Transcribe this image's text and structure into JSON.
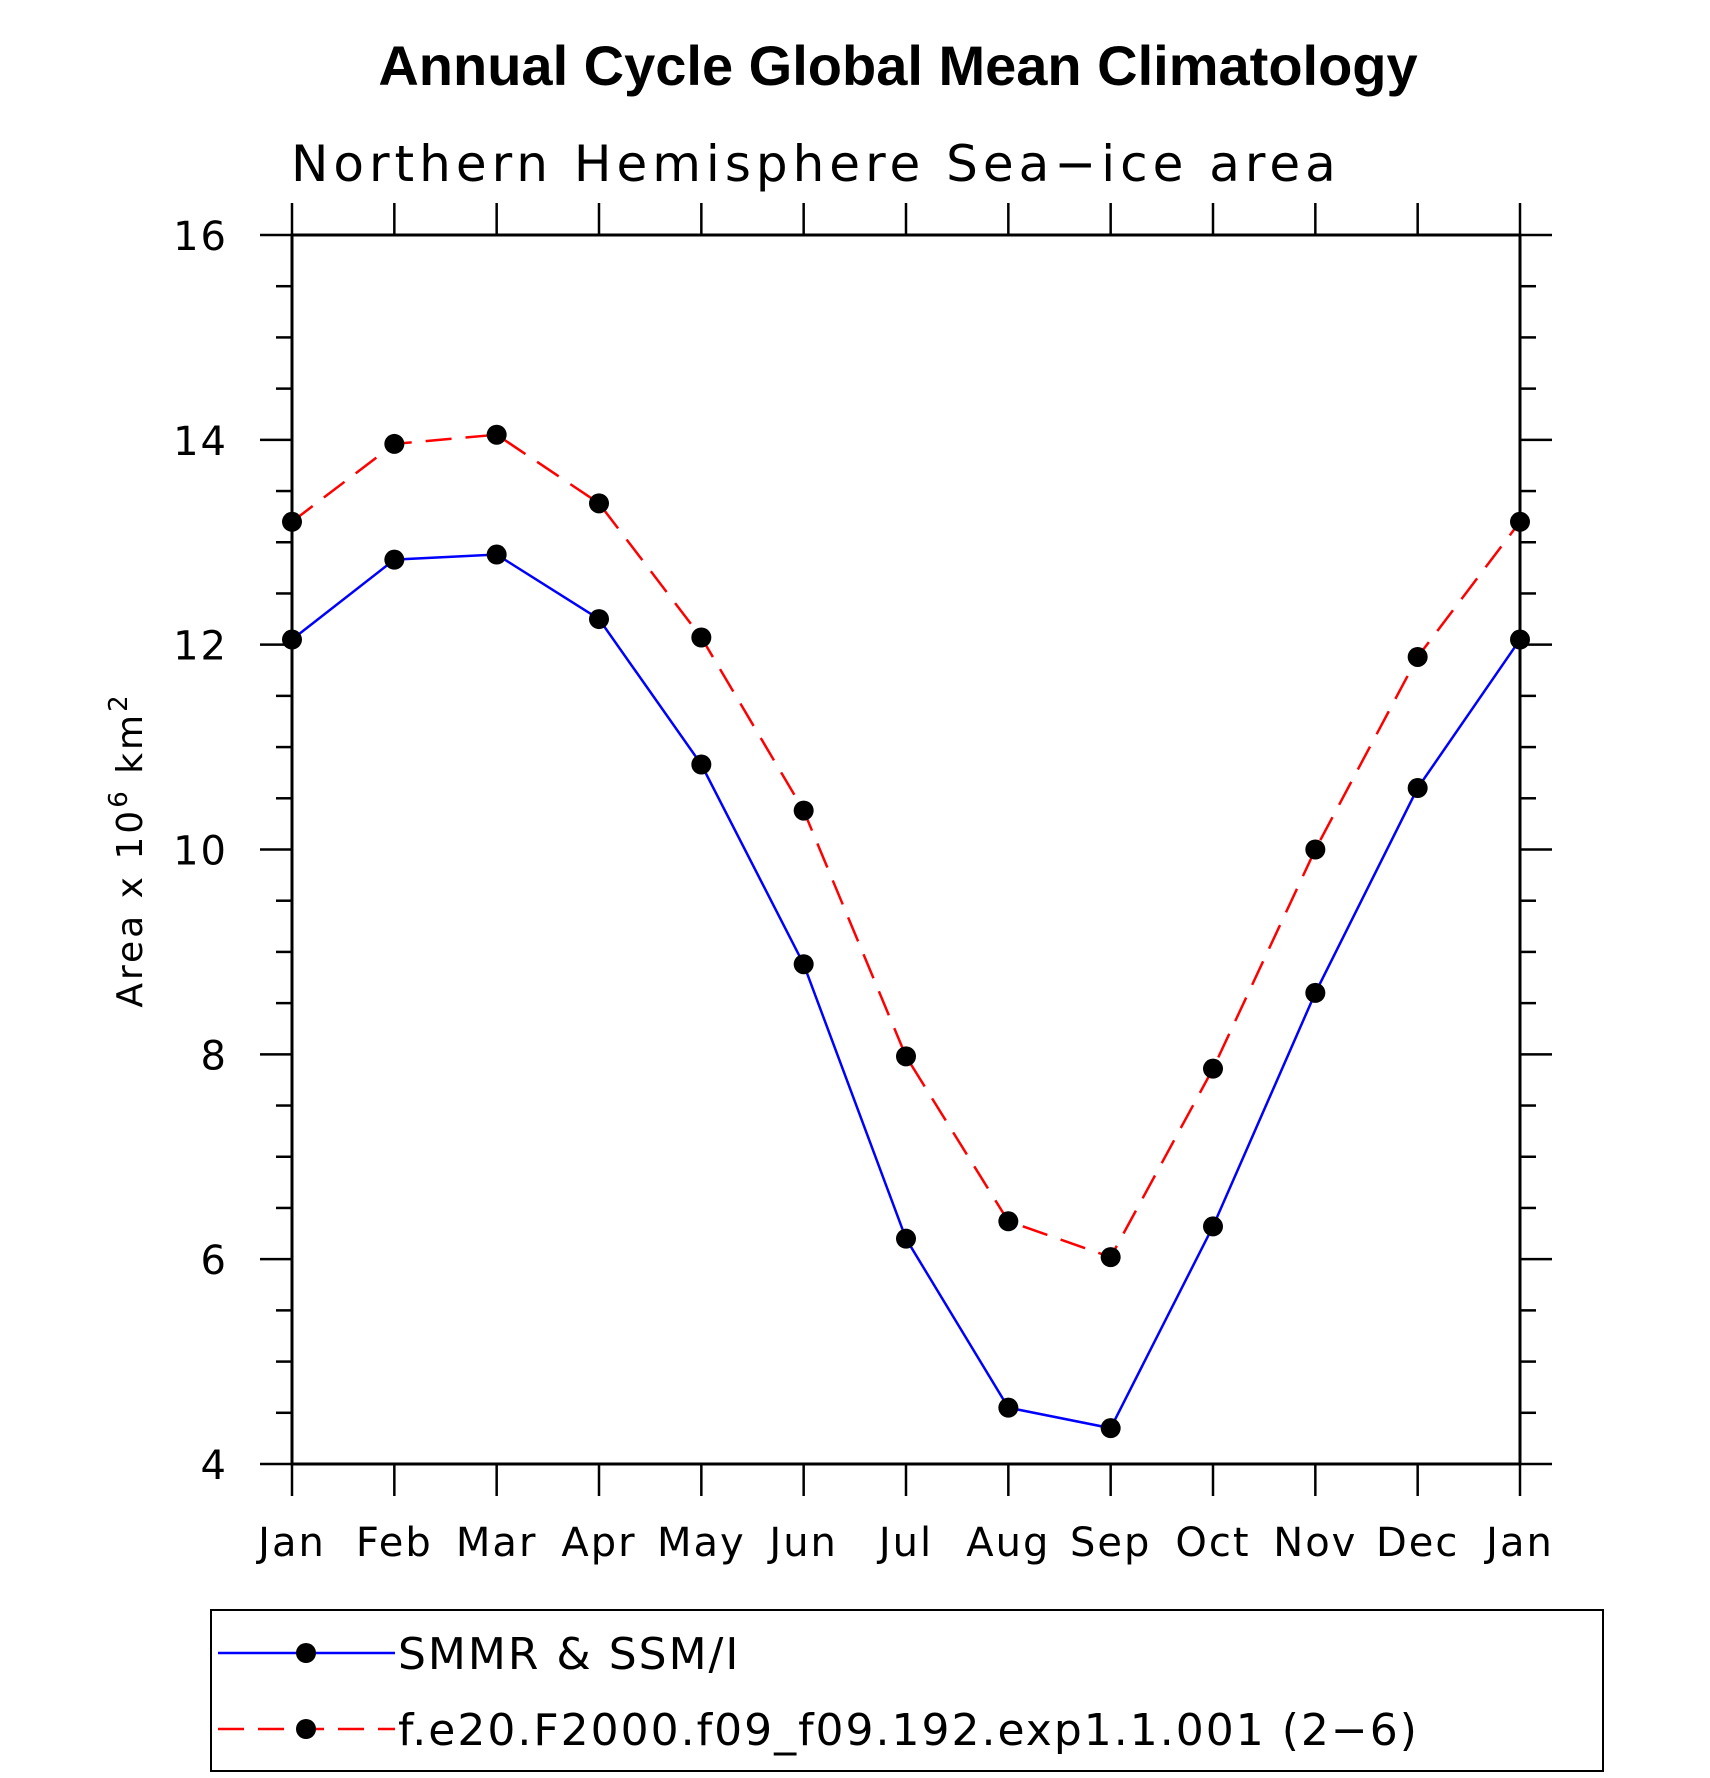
{
  "chart_data": {
    "type": "line",
    "title": "Annual Cycle Global Mean Climatology",
    "subtitle": "Northern Hemisphere Sea−ice area",
    "ylabel": "Area x 10",
    "ylabel_exp": "6",
    "ylabel_unit": " km",
    "ylabel_unit_exp": "2",
    "xlabel": "",
    "categories": [
      "Jan",
      "Feb",
      "Mar",
      "Apr",
      "May",
      "Jun",
      "Jul",
      "Aug",
      "Sep",
      "Oct",
      "Nov",
      "Dec",
      "Jan"
    ],
    "ylim": [
      4,
      16
    ],
    "yticks": [
      4,
      6,
      8,
      10,
      12,
      14,
      16
    ],
    "ytick_labels": [
      "4",
      "6",
      "8",
      "10",
      "12",
      "14",
      "16"
    ],
    "grid": false,
    "legend_position": "bottom",
    "series": [
      {
        "name": "SMMR & SSM/I",
        "color": "#0000ff",
        "line_style": "solid",
        "marker": "filled-circle",
        "values": [
          12.05,
          12.83,
          12.88,
          12.25,
          10.83,
          8.88,
          6.2,
          4.55,
          4.35,
          6.32,
          8.6,
          10.6,
          12.05
        ]
      },
      {
        "name": "f.e20.F2000.f09_f09.192.exp1.1.001 (2−6)",
        "color": "#ff0000",
        "line_style": "dashed",
        "marker": "filled-circle",
        "values": [
          13.2,
          13.96,
          14.05,
          13.38,
          12.07,
          10.38,
          7.98,
          6.37,
          6.02,
          7.86,
          10.0,
          11.88,
          13.2
        ]
      }
    ]
  }
}
